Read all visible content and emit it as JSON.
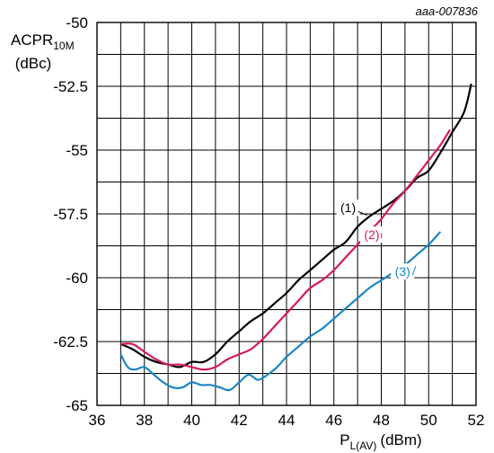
{
  "figure_code": "aaa-007836",
  "chart_data": {
    "type": "line",
    "xlabel": {
      "main": "P",
      "sub": "L(AV)",
      "unit": "(dBm)"
    },
    "ylabel": {
      "main": "ACPR",
      "sub": "10M",
      "unit": "(dBc)"
    },
    "xlim": [
      36,
      52
    ],
    "ylim": [
      -65,
      -50
    ],
    "xticks": [
      36,
      38,
      40,
      42,
      44,
      46,
      48,
      50,
      52
    ],
    "yticks": [
      -50,
      -52.5,
      -55,
      -57.5,
      -60,
      -62.5,
      -65
    ],
    "ytick_labels": [
      "-50",
      "-52.5",
      "-55",
      "-57.5",
      "-60",
      "-62.5",
      "-65"
    ],
    "grid": true,
    "series": [
      {
        "name": "(1)",
        "color": "#000000",
        "x": [
          37.0,
          37.5,
          38.0,
          38.5,
          39.0,
          39.5,
          40.0,
          40.5,
          41.0,
          41.5,
          42.0,
          42.5,
          43.0,
          43.5,
          44.0,
          44.5,
          45.0,
          45.5,
          46.0,
          46.5,
          47.0,
          47.5,
          48.0,
          48.5,
          49.0,
          49.5,
          50.0,
          50.5,
          51.0,
          51.5,
          51.8
        ],
        "y": [
          -62.6,
          -62.8,
          -63.1,
          -63.3,
          -63.4,
          -63.5,
          -63.3,
          -63.3,
          -63.0,
          -62.5,
          -62.1,
          -61.7,
          -61.4,
          -61.0,
          -60.6,
          -60.1,
          -59.7,
          -59.3,
          -58.9,
          -58.6,
          -58.0,
          -57.6,
          -57.3,
          -57.0,
          -56.6,
          -56.1,
          -55.8,
          -55.1,
          -54.3,
          -53.5,
          -52.4
        ]
      },
      {
        "name": "(2)",
        "color": "#d6195d",
        "x": [
          37.0,
          37.5,
          38.0,
          38.5,
          39.0,
          39.5,
          40.0,
          40.5,
          41.0,
          41.5,
          42.0,
          42.5,
          43.0,
          43.5,
          44.0,
          44.5,
          45.0,
          45.5,
          46.0,
          46.5,
          47.0,
          47.5,
          48.0,
          48.5,
          49.0,
          49.5,
          50.0,
          50.5,
          50.9
        ],
        "y": [
          -62.6,
          -62.6,
          -62.9,
          -63.2,
          -63.4,
          -63.4,
          -63.5,
          -63.6,
          -63.5,
          -63.2,
          -63.0,
          -62.8,
          -62.4,
          -61.9,
          -61.4,
          -60.9,
          -60.4,
          -60.1,
          -59.7,
          -59.2,
          -58.7,
          -58.2,
          -57.7,
          -57.1,
          -56.6,
          -56.0,
          -55.4,
          -54.8,
          -54.2
        ]
      },
      {
        "name": "(3)",
        "color": "#1a87c4",
        "x": [
          37.0,
          37.3,
          37.6,
          38.0,
          38.4,
          38.8,
          39.2,
          39.6,
          40.0,
          40.4,
          40.8,
          41.2,
          41.6,
          42.0,
          42.4,
          42.8,
          43.2,
          43.6,
          44.0,
          44.5,
          45.0,
          45.5,
          46.0,
          46.5,
          47.0,
          47.5,
          48.0,
          48.5,
          49.0,
          49.5,
          50.0,
          50.5
        ],
        "y": [
          -63.0,
          -63.5,
          -63.6,
          -63.5,
          -63.8,
          -64.1,
          -64.3,
          -64.3,
          -64.1,
          -64.2,
          -64.2,
          -64.3,
          -64.4,
          -64.1,
          -63.8,
          -64.0,
          -63.8,
          -63.5,
          -63.1,
          -62.7,
          -62.3,
          -62.0,
          -61.6,
          -61.2,
          -60.8,
          -60.4,
          -60.1,
          -59.8,
          -59.5,
          -59.1,
          -58.7,
          -58.2
        ]
      }
    ]
  }
}
